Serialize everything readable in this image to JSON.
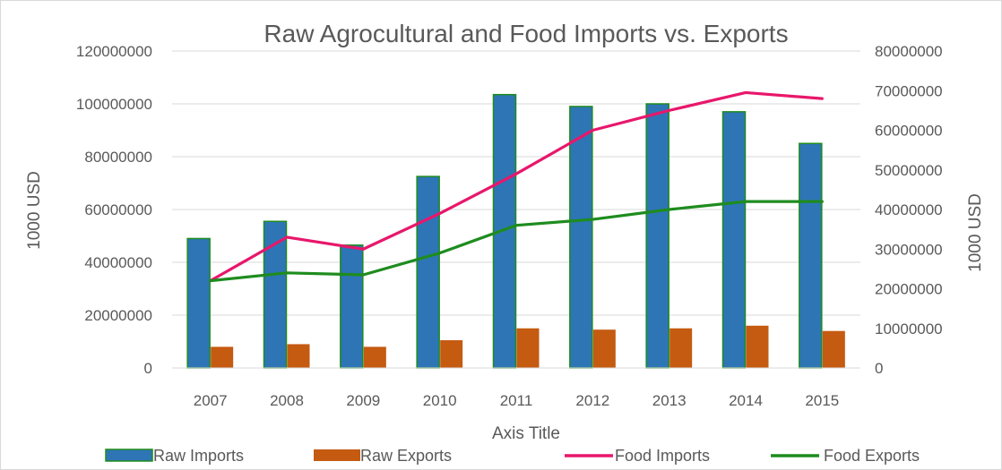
{
  "chart_data": {
    "type": "bar",
    "title": "Raw Agrocultural and Food Imports vs. Exports",
    "xlabel": "Axis Title",
    "ylabel": "1000 USD",
    "y2label": "1000 USD",
    "categories": [
      "2007",
      "2008",
      "2009",
      "2010",
      "2011",
      "2012",
      "2013",
      "2014",
      "2015"
    ],
    "ylim": [
      0,
      120000000
    ],
    "y2lim": [
      0,
      80000000
    ],
    "yticks": [
      "0",
      "20000000",
      "40000000",
      "60000000",
      "80000000",
      "100000000",
      "120000000"
    ],
    "y2ticks": [
      "0",
      "10000000",
      "20000000",
      "30000000",
      "40000000",
      "50000000",
      "60000000",
      "70000000",
      "80000000"
    ],
    "grid": true,
    "legend_position": "bottom",
    "series": [
      {
        "name": "Raw Imports",
        "kind": "bar",
        "axis": "left",
        "color": "#2E75B6",
        "edge": "#1E8C1E",
        "values": [
          49000000,
          55500000,
          46500000,
          72500000,
          103500000,
          99000000,
          100000000,
          97000000,
          85000000
        ]
      },
      {
        "name": "Raw Exports",
        "kind": "bar",
        "axis": "left",
        "color": "#C55A11",
        "values": [
          8000000,
          9000000,
          8000000,
          10500000,
          15000000,
          14500000,
          15000000,
          16000000,
          14000000
        ]
      },
      {
        "name": "Food Imports",
        "kind": "line",
        "axis": "right",
        "color": "#E8176B",
        "values": [
          22000000,
          33000000,
          30000000,
          39000000,
          49000000,
          60000000,
          65000000,
          69500000,
          68000000
        ]
      },
      {
        "name": "Food Exports",
        "kind": "line",
        "axis": "right",
        "color": "#1E8C1E",
        "values": [
          22000000,
          24000000,
          23500000,
          29000000,
          36000000,
          37500000,
          40000000,
          42000000,
          42000000
        ]
      }
    ]
  }
}
